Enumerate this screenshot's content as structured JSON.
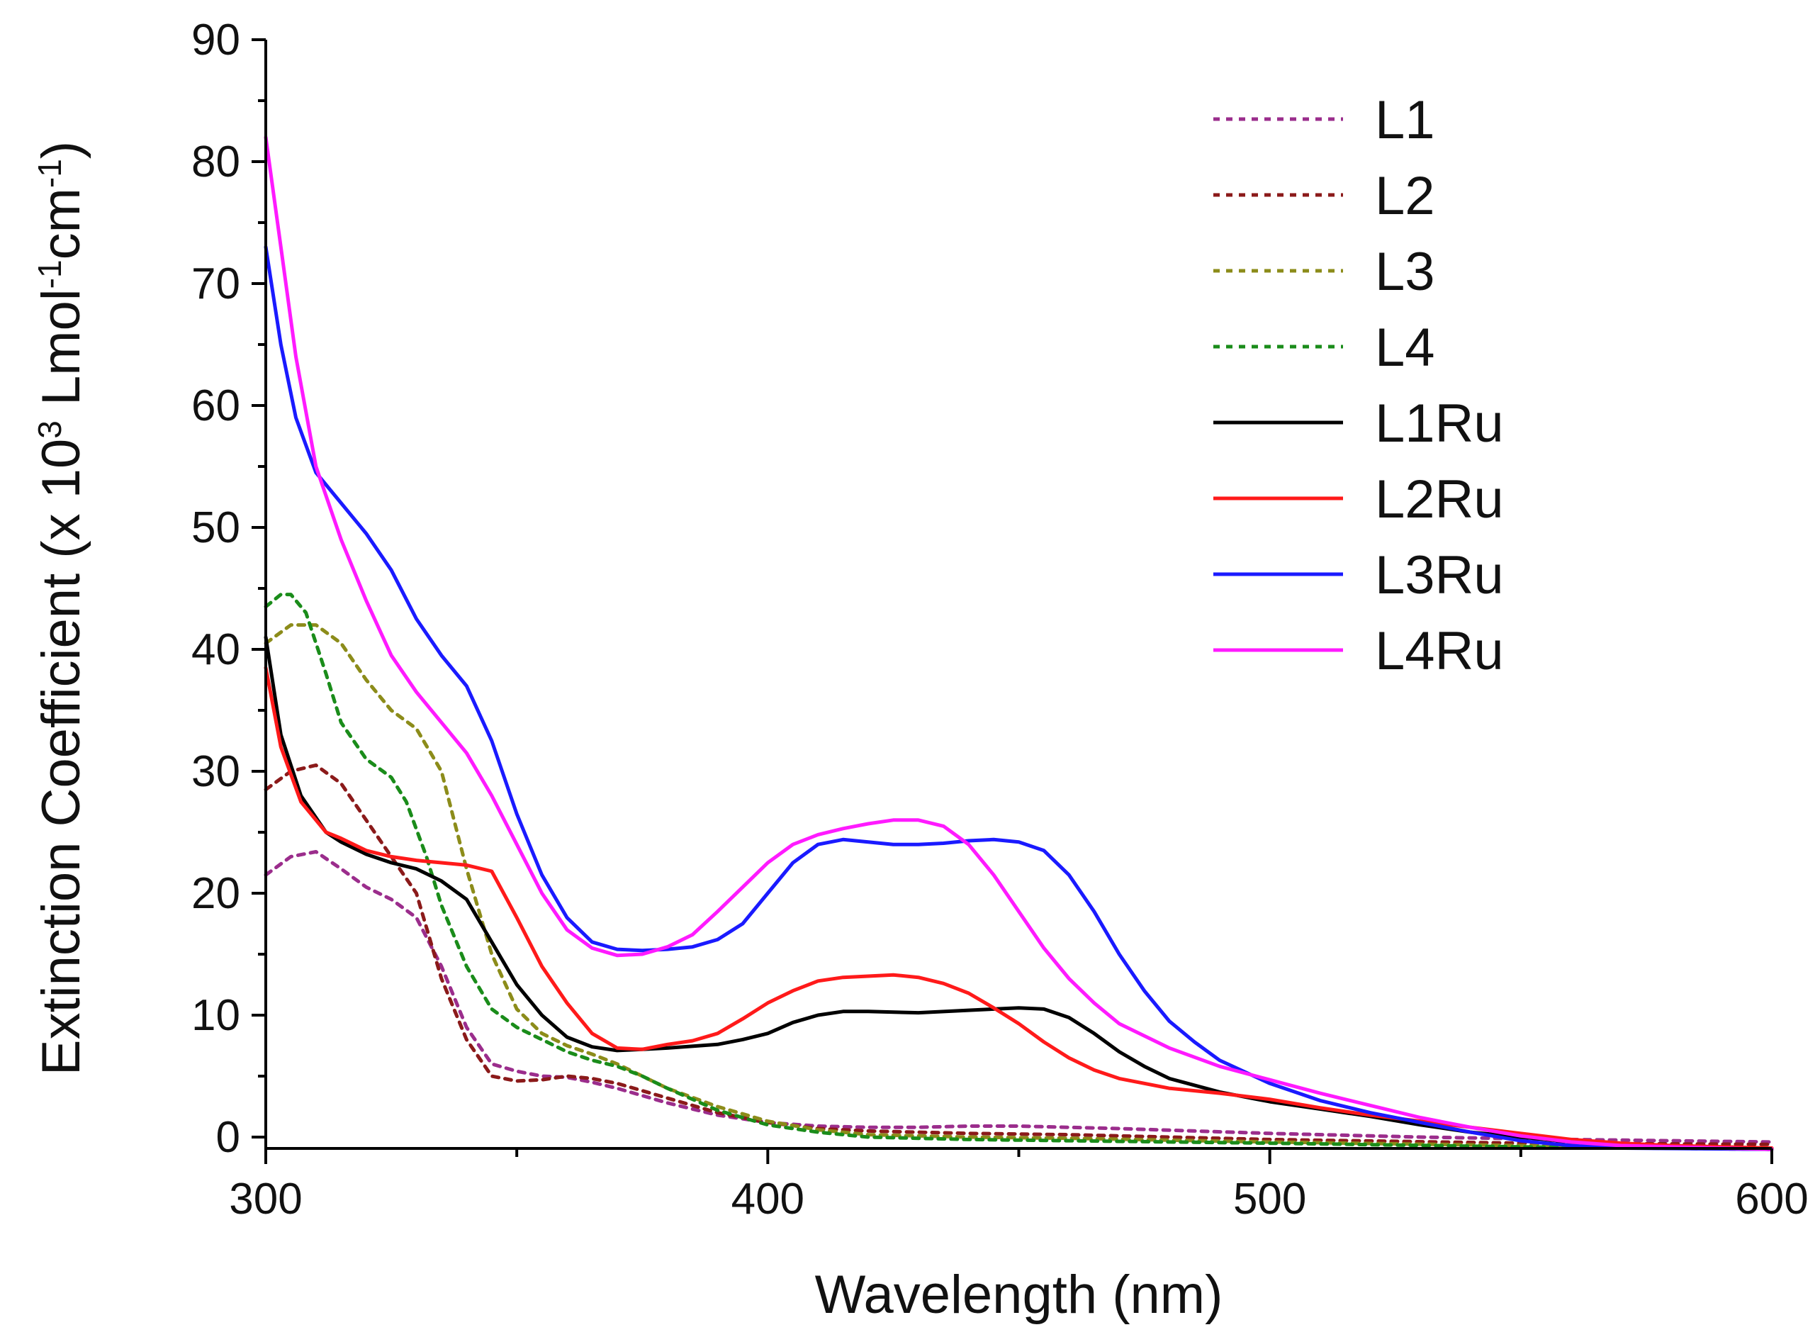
{
  "chart_data": {
    "type": "line",
    "title": "",
    "xlabel": "Wavelength (nm)",
    "ylabel": {
      "prefix": "Extinction Coefficient (x 10",
      "exp1": "3",
      "mid1": " Lmol",
      "exp2": "-1",
      "mid2": "cm",
      "exp3": "-1",
      "suffix": ")"
    },
    "xlim": [
      300,
      600
    ],
    "ylim": [
      -1,
      90
    ],
    "xticks": [
      300,
      400,
      500,
      600
    ],
    "xtick_labels": [
      "300",
      "400",
      "500",
      "600"
    ],
    "yticks": [
      0,
      10,
      20,
      30,
      40,
      50,
      60,
      70,
      80,
      90
    ],
    "ytick_labels": [
      "0",
      "10",
      "20",
      "30",
      "40",
      "50",
      "60",
      "70",
      "80",
      "90"
    ],
    "legend_position": "top-right",
    "series": [
      {
        "name": "L1",
        "color": "#9b2d8c",
        "dashed": true,
        "points": [
          [
            300,
            21.5
          ],
          [
            305,
            23
          ],
          [
            310,
            23.4
          ],
          [
            315,
            22
          ],
          [
            320,
            20.5
          ],
          [
            325,
            19.5
          ],
          [
            330,
            18
          ],
          [
            335,
            14
          ],
          [
            340,
            9
          ],
          [
            345,
            6
          ],
          [
            350,
            5.4
          ],
          [
            355,
            5
          ],
          [
            360,
            4.9
          ],
          [
            365,
            4.5
          ],
          [
            370,
            4
          ],
          [
            375,
            3.4
          ],
          [
            380,
            2.8
          ],
          [
            390,
            1.8
          ],
          [
            400,
            1.2
          ],
          [
            410,
            0.9
          ],
          [
            420,
            0.8
          ],
          [
            430,
            0.8
          ],
          [
            440,
            0.9
          ],
          [
            450,
            0.9
          ],
          [
            470,
            0.7
          ],
          [
            500,
            0.3
          ],
          [
            530,
            0
          ],
          [
            560,
            -0.2
          ],
          [
            600,
            -0.4
          ]
        ]
      },
      {
        "name": "L2",
        "color": "#8b1a1a",
        "dashed": true,
        "points": [
          [
            300,
            28.5
          ],
          [
            305,
            30
          ],
          [
            310,
            30.5
          ],
          [
            315,
            29
          ],
          [
            320,
            26
          ],
          [
            325,
            23
          ],
          [
            330,
            20
          ],
          [
            335,
            13
          ],
          [
            340,
            8
          ],
          [
            345,
            5
          ],
          [
            350,
            4.6
          ],
          [
            355,
            4.7
          ],
          [
            360,
            5
          ],
          [
            365,
            4.8
          ],
          [
            370,
            4.4
          ],
          [
            375,
            3.8
          ],
          [
            380,
            3.2
          ],
          [
            390,
            2
          ],
          [
            400,
            1.2
          ],
          [
            410,
            0.7
          ],
          [
            420,
            0.5
          ],
          [
            440,
            0.3
          ],
          [
            460,
            0.2
          ],
          [
            480,
            0
          ],
          [
            500,
            -0.2
          ],
          [
            550,
            -0.5
          ],
          [
            600,
            -0.6
          ]
        ]
      },
      {
        "name": "L3",
        "color": "#8c8c1a",
        "dashed": true,
        "points": [
          [
            300,
            40.5
          ],
          [
            305,
            42
          ],
          [
            310,
            42
          ],
          [
            315,
            40.5
          ],
          [
            320,
            37.5
          ],
          [
            325,
            35
          ],
          [
            330,
            33.5
          ],
          [
            335,
            30
          ],
          [
            340,
            22
          ],
          [
            345,
            15
          ],
          [
            350,
            10.5
          ],
          [
            355,
            8.5
          ],
          [
            360,
            7.5
          ],
          [
            365,
            6.8
          ],
          [
            370,
            6
          ],
          [
            375,
            5
          ],
          [
            380,
            4
          ],
          [
            390,
            2.5
          ],
          [
            400,
            1.3
          ],
          [
            410,
            0.6
          ],
          [
            420,
            0.2
          ],
          [
            440,
            0
          ],
          [
            460,
            -0.1
          ],
          [
            500,
            -0.4
          ],
          [
            550,
            -0.7
          ],
          [
            600,
            -0.9
          ]
        ]
      },
      {
        "name": "L4",
        "color": "#1a8c1a",
        "dashed": true,
        "points": [
          [
            300,
            43.5
          ],
          [
            303,
            44.5
          ],
          [
            305,
            44.5
          ],
          [
            308,
            43
          ],
          [
            312,
            38
          ],
          [
            315,
            34
          ],
          [
            320,
            31
          ],
          [
            325,
            29.5
          ],
          [
            328,
            27.5
          ],
          [
            332,
            23
          ],
          [
            335,
            19
          ],
          [
            340,
            14
          ],
          [
            345,
            10.5
          ],
          [
            350,
            9
          ],
          [
            355,
            8
          ],
          [
            360,
            7
          ],
          [
            365,
            6.3
          ],
          [
            370,
            5.8
          ],
          [
            375,
            5
          ],
          [
            380,
            4
          ],
          [
            390,
            2.2
          ],
          [
            400,
            1
          ],
          [
            410,
            0.4
          ],
          [
            420,
            0
          ],
          [
            440,
            -0.2
          ],
          [
            500,
            -0.5
          ],
          [
            550,
            -0.8
          ],
          [
            600,
            -1
          ]
        ]
      },
      {
        "name": "L1Ru",
        "color": "#000000",
        "dashed": false,
        "points": [
          [
            300,
            41
          ],
          [
            303,
            33
          ],
          [
            307,
            28
          ],
          [
            312,
            25
          ],
          [
            315,
            24.2
          ],
          [
            320,
            23.2
          ],
          [
            325,
            22.5
          ],
          [
            330,
            22
          ],
          [
            335,
            21
          ],
          [
            340,
            19.5
          ],
          [
            345,
            16
          ],
          [
            350,
            12.5
          ],
          [
            355,
            10
          ],
          [
            360,
            8.2
          ],
          [
            365,
            7.4
          ],
          [
            370,
            7.1
          ],
          [
            375,
            7.2
          ],
          [
            380,
            7.3
          ],
          [
            390,
            7.6
          ],
          [
            395,
            8
          ],
          [
            400,
            8.5
          ],
          [
            405,
            9.4
          ],
          [
            410,
            10
          ],
          [
            415,
            10.3
          ],
          [
            420,
            10.3
          ],
          [
            430,
            10.2
          ],
          [
            440,
            10.4
          ],
          [
            445,
            10.5
          ],
          [
            450,
            10.6
          ],
          [
            455,
            10.5
          ],
          [
            460,
            9.8
          ],
          [
            465,
            8.5
          ],
          [
            470,
            7
          ],
          [
            475,
            5.8
          ],
          [
            480,
            4.8
          ],
          [
            490,
            3.7
          ],
          [
            500,
            2.9
          ],
          [
            510,
            2.3
          ],
          [
            520,
            1.7
          ],
          [
            530,
            1
          ],
          [
            540,
            0.4
          ],
          [
            550,
            0
          ],
          [
            560,
            -0.4
          ],
          [
            570,
            -0.6
          ],
          [
            580,
            -0.8
          ],
          [
            600,
            -1
          ]
        ]
      },
      {
        "name": "L2Ru",
        "color": "#ff1a1a",
        "dashed": false,
        "points": [
          [
            300,
            38.5
          ],
          [
            303,
            32
          ],
          [
            307,
            27.5
          ],
          [
            312,
            25
          ],
          [
            315,
            24.5
          ],
          [
            320,
            23.5
          ],
          [
            325,
            23
          ],
          [
            330,
            22.7
          ],
          [
            335,
            22.5
          ],
          [
            340,
            22.3
          ],
          [
            345,
            21.8
          ],
          [
            350,
            18
          ],
          [
            355,
            14
          ],
          [
            360,
            11
          ],
          [
            365,
            8.5
          ],
          [
            370,
            7.3
          ],
          [
            375,
            7.2
          ],
          [
            380,
            7.6
          ],
          [
            385,
            7.9
          ],
          [
            390,
            8.5
          ],
          [
            395,
            9.7
          ],
          [
            400,
            11
          ],
          [
            405,
            12
          ],
          [
            410,
            12.8
          ],
          [
            415,
            13.1
          ],
          [
            420,
            13.2
          ],
          [
            425,
            13.3
          ],
          [
            430,
            13.1
          ],
          [
            435,
            12.6
          ],
          [
            440,
            11.8
          ],
          [
            445,
            10.6
          ],
          [
            450,
            9.3
          ],
          [
            455,
            7.8
          ],
          [
            460,
            6.5
          ],
          [
            465,
            5.5
          ],
          [
            470,
            4.8
          ],
          [
            480,
            4
          ],
          [
            490,
            3.6
          ],
          [
            500,
            3.1
          ],
          [
            510,
            2.4
          ],
          [
            520,
            1.8
          ],
          [
            530,
            1.3
          ],
          [
            540,
            0.8
          ],
          [
            550,
            0.3
          ],
          [
            560,
            -0.2
          ],
          [
            570,
            -0.5
          ],
          [
            580,
            -0.7
          ],
          [
            600,
            -0.9
          ]
        ]
      },
      {
        "name": "L3Ru",
        "color": "#1a1aff",
        "dashed": false,
        "points": [
          [
            300,
            73
          ],
          [
            303,
            65
          ],
          [
            306,
            59
          ],
          [
            310,
            54.5
          ],
          [
            315,
            52
          ],
          [
            320,
            49.5
          ],
          [
            325,
            46.5
          ],
          [
            330,
            42.5
          ],
          [
            335,
            39.5
          ],
          [
            340,
            37
          ],
          [
            345,
            32.5
          ],
          [
            350,
            26.5
          ],
          [
            355,
            21.5
          ],
          [
            360,
            18
          ],
          [
            365,
            16
          ],
          [
            370,
            15.4
          ],
          [
            375,
            15.3
          ],
          [
            380,
            15.4
          ],
          [
            385,
            15.6
          ],
          [
            390,
            16.2
          ],
          [
            395,
            17.5
          ],
          [
            400,
            20
          ],
          [
            405,
            22.5
          ],
          [
            410,
            24
          ],
          [
            415,
            24.4
          ],
          [
            420,
            24.2
          ],
          [
            425,
            24
          ],
          [
            430,
            24
          ],
          [
            435,
            24.1
          ],
          [
            440,
            24.3
          ],
          [
            445,
            24.4
          ],
          [
            450,
            24.2
          ],
          [
            455,
            23.5
          ],
          [
            460,
            21.5
          ],
          [
            465,
            18.5
          ],
          [
            470,
            15
          ],
          [
            475,
            12
          ],
          [
            480,
            9.5
          ],
          [
            485,
            7.8
          ],
          [
            490,
            6.3
          ],
          [
            500,
            4.4
          ],
          [
            510,
            3
          ],
          [
            520,
            2
          ],
          [
            530,
            1.2
          ],
          [
            540,
            0.4
          ],
          [
            550,
            -0.3
          ],
          [
            560,
            -0.7
          ],
          [
            570,
            -0.9
          ],
          [
            600,
            -1
          ]
        ]
      },
      {
        "name": "L4Ru",
        "color": "#ff1aff",
        "dashed": false,
        "points": [
          [
            300,
            82
          ],
          [
            303,
            73
          ],
          [
            306,
            64
          ],
          [
            310,
            55
          ],
          [
            315,
            49
          ],
          [
            320,
            44
          ],
          [
            325,
            39.5
          ],
          [
            330,
            36.5
          ],
          [
            335,
            34
          ],
          [
            340,
            31.5
          ],
          [
            345,
            28
          ],
          [
            350,
            24
          ],
          [
            355,
            20
          ],
          [
            360,
            17
          ],
          [
            365,
            15.5
          ],
          [
            370,
            14.9
          ],
          [
            375,
            15
          ],
          [
            380,
            15.6
          ],
          [
            385,
            16.6
          ],
          [
            390,
            18.5
          ],
          [
            395,
            20.5
          ],
          [
            400,
            22.5
          ],
          [
            405,
            24
          ],
          [
            410,
            24.8
          ],
          [
            415,
            25.3
          ],
          [
            420,
            25.7
          ],
          [
            425,
            26
          ],
          [
            430,
            26
          ],
          [
            435,
            25.5
          ],
          [
            440,
            24
          ],
          [
            445,
            21.5
          ],
          [
            450,
            18.5
          ],
          [
            455,
            15.5
          ],
          [
            460,
            13
          ],
          [
            465,
            11
          ],
          [
            470,
            9.3
          ],
          [
            480,
            7.3
          ],
          [
            490,
            5.8
          ],
          [
            500,
            4.7
          ],
          [
            510,
            3.6
          ],
          [
            520,
            2.6
          ],
          [
            530,
            1.6
          ],
          [
            540,
            0.8
          ],
          [
            550,
            0.1
          ],
          [
            560,
            -0.4
          ],
          [
            570,
            -0.7
          ],
          [
            600,
            -1
          ]
        ]
      }
    ]
  }
}
